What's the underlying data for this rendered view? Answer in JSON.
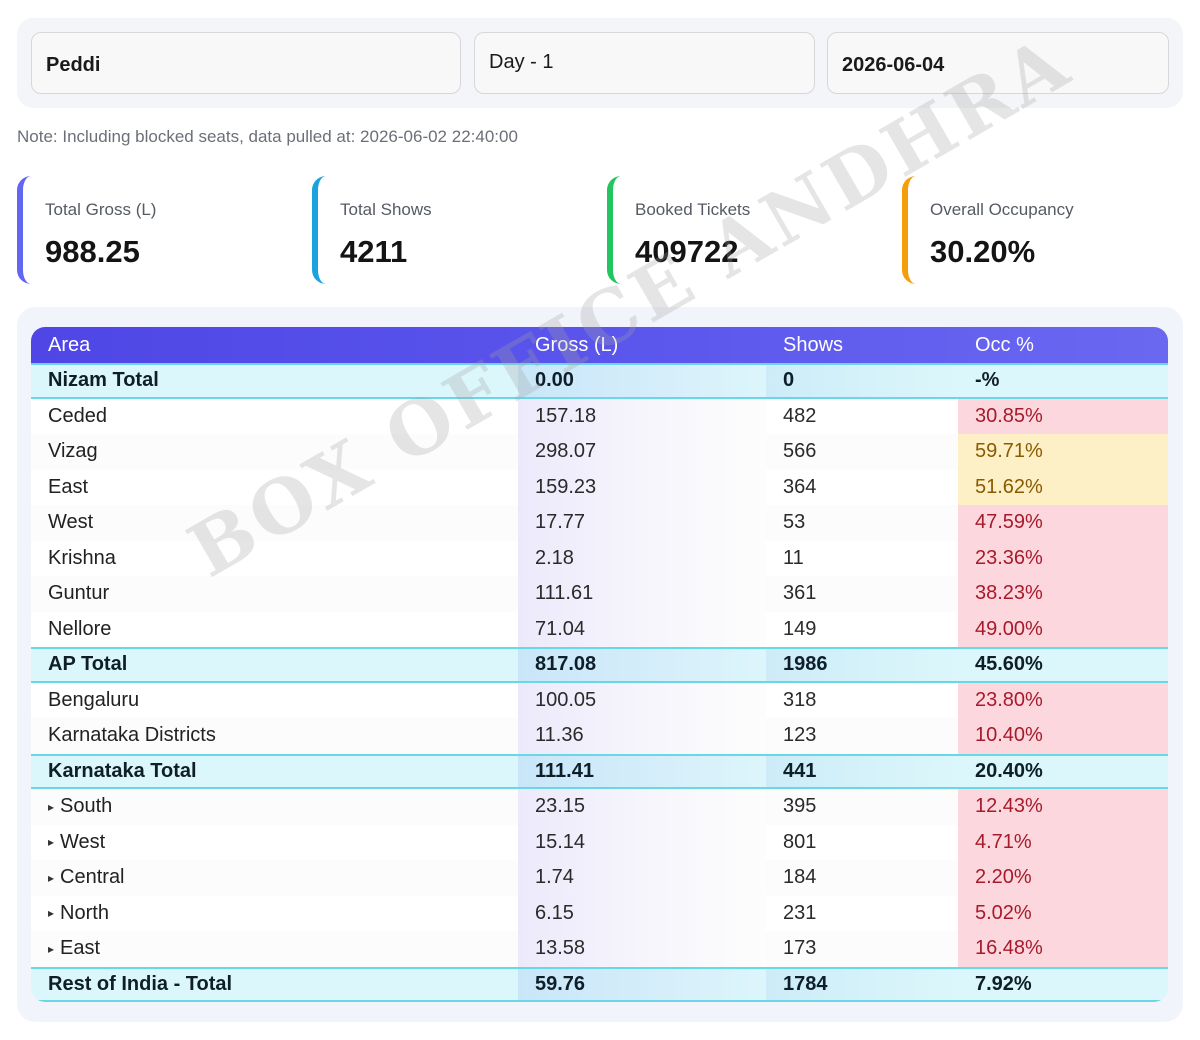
{
  "filters": {
    "movie": "Peddi",
    "day": "Day - 1",
    "date": "2026-06-04"
  },
  "note": "Note: Including blocked seats, data pulled at: 2026-06-02 22:40:00",
  "stats": [
    {
      "label": "Total Gross (L)",
      "value": "988.25",
      "color": "#6366f1"
    },
    {
      "label": "Total Shows",
      "value": "4211",
      "color": "#1aa3e0"
    },
    {
      "label": "Booked Tickets",
      "value": "409722",
      "color": "#22c55e"
    },
    {
      "label": "Overall Occupancy",
      "value": "30.20%",
      "color": "#f59e0b"
    }
  ],
  "table": {
    "headers": [
      "Area",
      "Gross (L)",
      "Shows",
      "Occ %"
    ],
    "rows": [
      {
        "area": "Nizam Total",
        "gross": "0.00",
        "shows": "0",
        "occ": "-%",
        "type": "total"
      },
      {
        "area": "Ceded",
        "gross": "157.18",
        "shows": "482",
        "occ": "30.85%",
        "type": "detail",
        "occ_level": "red"
      },
      {
        "area": "Vizag",
        "gross": "298.07",
        "shows": "566",
        "occ": "59.71%",
        "type": "detail",
        "occ_level": "yellow"
      },
      {
        "area": "East",
        "gross": "159.23",
        "shows": "364",
        "occ": "51.62%",
        "type": "detail",
        "occ_level": "yellow"
      },
      {
        "area": "West",
        "gross": "17.77",
        "shows": "53",
        "occ": "47.59%",
        "type": "detail",
        "occ_level": "red"
      },
      {
        "area": "Krishna",
        "gross": "2.18",
        "shows": "11",
        "occ": "23.36%",
        "type": "detail",
        "occ_level": "red"
      },
      {
        "area": "Guntur",
        "gross": "111.61",
        "shows": "361",
        "occ": "38.23%",
        "type": "detail",
        "occ_level": "red"
      },
      {
        "area": "Nellore",
        "gross": "71.04",
        "shows": "149",
        "occ": "49.00%",
        "type": "detail",
        "occ_level": "red"
      },
      {
        "area": "AP Total",
        "gross": "817.08",
        "shows": "1986",
        "occ": "45.60%",
        "type": "total"
      },
      {
        "area": "Bengaluru",
        "gross": "100.05",
        "shows": "318",
        "occ": "23.80%",
        "type": "detail",
        "occ_level": "red"
      },
      {
        "area": "Karnataka Districts",
        "gross": "11.36",
        "shows": "123",
        "occ": "10.40%",
        "type": "detail",
        "occ_level": "red"
      },
      {
        "area": "Karnataka Total",
        "gross": "111.41",
        "shows": "441",
        "occ": "20.40%",
        "type": "total"
      },
      {
        "area": "South",
        "gross": "23.15",
        "shows": "395",
        "occ": "12.43%",
        "type": "detail",
        "occ_level": "red",
        "sub": true
      },
      {
        "area": "West",
        "gross": "15.14",
        "shows": "801",
        "occ": "4.71%",
        "type": "detail",
        "occ_level": "red",
        "sub": true
      },
      {
        "area": "Central",
        "gross": "1.74",
        "shows": "184",
        "occ": "2.20%",
        "type": "detail",
        "occ_level": "red",
        "sub": true
      },
      {
        "area": "North",
        "gross": "6.15",
        "shows": "231",
        "occ": "5.02%",
        "type": "detail",
        "occ_level": "red",
        "sub": true
      },
      {
        "area": "East",
        "gross": "13.58",
        "shows": "173",
        "occ": "16.48%",
        "type": "detail",
        "occ_level": "red",
        "sub": true
      },
      {
        "area": "Rest of India - Total",
        "gross": "59.76",
        "shows": "1784",
        "occ": "7.92%",
        "type": "total"
      }
    ]
  },
  "sub_marker": "▸",
  "watermark": "BOX OFFICE ANDHRA"
}
